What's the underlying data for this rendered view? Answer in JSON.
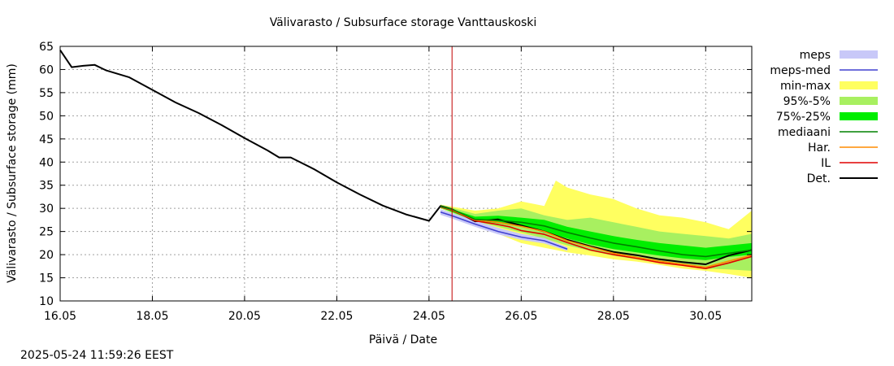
{
  "chart_data": {
    "type": "line",
    "title": "Välivarasto / Subsurface storage  Vanttauskoski",
    "xlabel": "Päivä / Date",
    "ylabel": "Välivarasto / Subsurface storage (mm)",
    "x_unit": "date",
    "xlim": [
      "2025-05-16",
      "2025-05-31"
    ],
    "ylim": [
      10,
      65
    ],
    "x_ticks": [
      "16.05",
      "18.05",
      "20.05",
      "22.05",
      "24.05",
      "26.05",
      "28.05",
      "30.05"
    ],
    "y_ticks": [
      10,
      15,
      20,
      25,
      30,
      35,
      40,
      45,
      50,
      55,
      60,
      65
    ],
    "grid": true,
    "forecast_start": "2025-05-24 11:59",
    "colors": {
      "meps": "#c8c8f8",
      "meps-med": "#4040d0",
      "min-max": "#ffff60",
      "95%-5%": "#a8f060",
      "75%-25%": "#00ee00",
      "mediaani": "#008000",
      "Har.": "#ff8c00",
      "IL": "#e00000",
      "Det.": "#000000",
      "now_line": "#c00000"
    },
    "legend": [
      "meps",
      "meps-med",
      "min-max",
      "95%-5%",
      "75%-25%",
      "mediaani",
      "Har.",
      "IL",
      "Det."
    ],
    "legend_position": "right",
    "series": [
      {
        "name": "Det.",
        "x": [
          "2025-05-16 00:00",
          "2025-05-16 06:00",
          "2025-05-16 12:00",
          "2025-05-16 18:00",
          "2025-05-17 00:00",
          "2025-05-17 12:00",
          "2025-05-18 00:00",
          "2025-05-18 12:00",
          "2025-05-19 00:00",
          "2025-05-19 12:00",
          "2025-05-20 00:00",
          "2025-05-20 12:00",
          "2025-05-20 18:00",
          "2025-05-21 00:00",
          "2025-05-21 12:00",
          "2025-05-22 00:00",
          "2025-05-22 12:00",
          "2025-05-23 00:00",
          "2025-05-23 12:00",
          "2025-05-24 00:00",
          "2025-05-24 06:00",
          "2025-05-24 12:00",
          "2025-05-24 18:00",
          "2025-05-25 00:00",
          "2025-05-25 12:00",
          "2025-05-26 00:00",
          "2025-05-26 12:00",
          "2025-05-27 00:00",
          "2025-05-27 12:00",
          "2025-05-28 00:00",
          "2025-05-28 12:00",
          "2025-05-29 00:00",
          "2025-05-29 12:00",
          "2025-05-30 00:00",
          "2025-05-30 12:00",
          "2025-05-31 00:00"
        ],
        "y": [
          64.2,
          60.5,
          60.8,
          61.0,
          59.8,
          58.3,
          55.6,
          52.9,
          50.6,
          48.0,
          45.2,
          42.5,
          41.0,
          41.0,
          38.5,
          35.6,
          33.0,
          30.6,
          28.7,
          27.3,
          30.5,
          29.8,
          28.5,
          27.2,
          27.6,
          26.3,
          25.0,
          23.2,
          21.8,
          20.6,
          19.9,
          19.0,
          18.4,
          17.9,
          19.8,
          21.0
        ]
      },
      {
        "name": "IL",
        "x": [
          "2025-05-24 06:00",
          "2025-05-24 12:00",
          "2025-05-25 00:00",
          "2025-05-25 12:00",
          "2025-05-25 18:00",
          "2025-05-26 00:00",
          "2025-05-26 12:00",
          "2025-05-27 00:00",
          "2025-05-27 12:00",
          "2025-05-28 00:00",
          "2025-05-28 12:00",
          "2025-05-29 00:00",
          "2025-05-29 12:00",
          "2025-05-30 00:00",
          "2025-05-30 12:00",
          "2025-05-31 00:00"
        ],
        "y": [
          30.3,
          29.6,
          27.3,
          26.5,
          26.0,
          25.2,
          24.4,
          22.6,
          21.0,
          20.0,
          19.2,
          18.3,
          17.7,
          17.0,
          18.2,
          19.6
        ]
      },
      {
        "name": "Har.",
        "x": [
          "2025-05-24 06:00",
          "2025-05-24 12:00",
          "2025-05-25 00:00",
          "2025-05-25 12:00",
          "2025-05-26 00:00",
          "2025-05-26 12:00",
          "2025-05-27 00:00",
          "2025-05-28 00:00",
          "2025-05-29 00:00",
          "2025-05-30 00:00",
          "2025-05-31 00:00"
        ],
        "y": [
          30.4,
          29.7,
          27.5,
          27.0,
          26.1,
          25.0,
          23.0,
          20.3,
          18.6,
          17.3,
          19.9
        ]
      },
      {
        "name": "mediaani",
        "x": [
          "2025-05-24 06:00",
          "2025-05-24 12:00",
          "2025-05-25 00:00",
          "2025-05-25 12:00",
          "2025-05-26 00:00",
          "2025-05-26 12:00",
          "2025-05-27 00:00",
          "2025-05-27 12:00",
          "2025-05-28 00:00",
          "2025-05-28 12:00",
          "2025-05-29 00:00",
          "2025-05-29 12:00",
          "2025-05-30 00:00",
          "2025-05-30 12:00",
          "2025-05-31 00:00"
        ],
        "y": [
          30.4,
          29.8,
          27.6,
          27.4,
          27.0,
          26.2,
          24.8,
          23.6,
          22.5,
          21.7,
          20.8,
          20.0,
          19.6,
          20.3,
          21.0
        ]
      },
      {
        "name": "meps-med",
        "x": [
          "2025-05-24 06:00",
          "2025-05-24 12:00",
          "2025-05-25 00:00",
          "2025-05-25 12:00",
          "2025-05-26 00:00",
          "2025-05-26 12:00",
          "2025-05-27 00:00"
        ],
        "y": [
          29.2,
          28.4,
          26.6,
          25.0,
          23.8,
          23.0,
          21.2
        ]
      }
    ],
    "bands": [
      {
        "name": "min-max",
        "x": [
          "2025-05-24 06:00",
          "2025-05-25 00:00",
          "2025-05-25 12:00",
          "2025-05-26 00:00",
          "2025-05-26 12:00",
          "2025-05-26 18:00",
          "2025-05-27 00:00",
          "2025-05-27 12:00",
          "2025-05-28 00:00",
          "2025-05-28 12:00",
          "2025-05-29 00:00",
          "2025-05-29 12:00",
          "2025-05-30 00:00",
          "2025-05-30 12:00",
          "2025-05-31 00:00"
        ],
        "low": [
          30.0,
          27.0,
          24.5,
          22.5,
          21.5,
          21.0,
          20.5,
          19.8,
          19.0,
          18.5,
          17.8,
          17.0,
          16.5,
          15.8,
          15.0
        ],
        "high": [
          30.8,
          29.5,
          30.0,
          31.5,
          30.5,
          36.0,
          34.5,
          33.0,
          32.0,
          30.0,
          28.5,
          28.0,
          27.0,
          25.5,
          29.5
        ]
      },
      {
        "name": "95%-5%",
        "x": [
          "2025-05-24 06:00",
          "2025-05-25 00:00",
          "2025-05-25 12:00",
          "2025-05-26 00:00",
          "2025-05-26 12:00",
          "2025-05-27 00:00",
          "2025-05-27 12:00",
          "2025-05-28 00:00",
          "2025-05-28 12:00",
          "2025-05-29 00:00",
          "2025-05-29 12:00",
          "2025-05-30 00:00",
          "2025-05-30 12:00",
          "2025-05-31 00:00"
        ],
        "low": [
          30.0,
          27.2,
          26.0,
          24.8,
          23.5,
          22.0,
          20.8,
          19.8,
          19.0,
          18.2,
          17.6,
          17.0,
          16.8,
          16.5
        ],
        "high": [
          30.8,
          28.8,
          29.5,
          30.0,
          28.5,
          27.5,
          28.0,
          27.0,
          26.0,
          25.0,
          24.5,
          24.0,
          23.5,
          24.5
        ]
      },
      {
        "name": "75%-25%",
        "x": [
          "2025-05-24 06:00",
          "2025-05-25 00:00",
          "2025-05-25 12:00",
          "2025-05-26 00:00",
          "2025-05-26 12:00",
          "2025-05-27 00:00",
          "2025-05-27 12:00",
          "2025-05-28 00:00",
          "2025-05-28 12:00",
          "2025-05-29 00:00",
          "2025-05-29 12:00",
          "2025-05-30 00:00",
          "2025-05-30 12:00",
          "2025-05-31 00:00"
        ],
        "low": [
          30.2,
          27.3,
          26.8,
          26.0,
          25.0,
          23.5,
          22.2,
          21.2,
          20.5,
          19.8,
          19.2,
          18.8,
          19.5,
          20.0
        ],
        "high": [
          30.6,
          28.2,
          28.4,
          28.0,
          27.5,
          26.0,
          25.0,
          24.0,
          23.2,
          22.5,
          22.0,
          21.5,
          22.0,
          22.5
        ]
      },
      {
        "name": "meps",
        "x": [
          "2025-05-24 06:00",
          "2025-05-24 12:00",
          "2025-05-25 00:00",
          "2025-05-25 12:00",
          "2025-05-26 00:00",
          "2025-05-26 12:00",
          "2025-05-27 00:00"
        ],
        "low": [
          28.6,
          27.8,
          26.0,
          24.4,
          23.2,
          22.4,
          20.8
        ],
        "high": [
          29.8,
          29.0,
          27.3,
          25.8,
          24.5,
          23.6,
          21.6
        ]
      }
    ]
  },
  "footer": {
    "timestamp": "2025-05-24 11:59:26 EEST"
  }
}
